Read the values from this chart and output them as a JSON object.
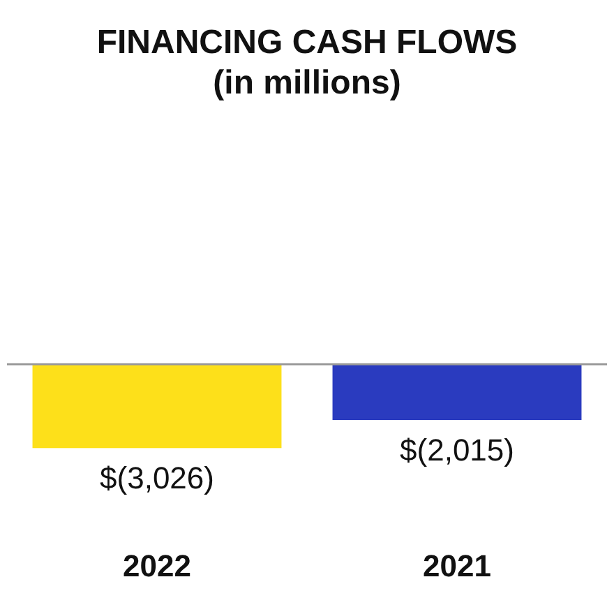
{
  "chart_data": {
    "type": "bar",
    "title": "FINANCING CASH FLOWS\n(in millions)",
    "categories": [
      "2022",
      "2021"
    ],
    "values": [
      -3026,
      -2015
    ],
    "colors": [
      "#fde01a",
      "#2a3bbf"
    ],
    "value_labels": [
      "$(3,026)",
      "$(2,015)"
    ],
    "legend": false
  }
}
